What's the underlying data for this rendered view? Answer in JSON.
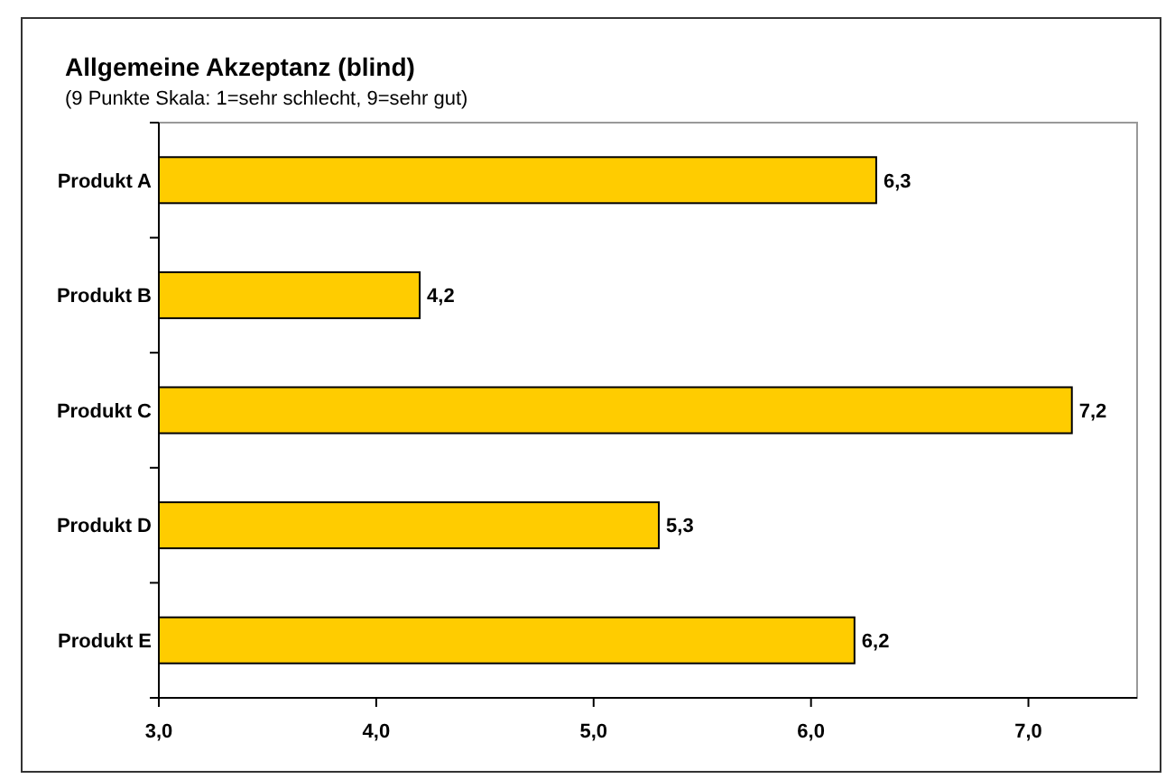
{
  "chart_data": {
    "type": "bar",
    "orientation": "horizontal",
    "title": "Allgemeine Akzeptanz (blind)",
    "subtitle": "(9 Punkte Skala: 1=sehr schlecht, 9=sehr gut)",
    "categories": [
      "Produkt A",
      "Produkt B",
      "Produkt C",
      "Produkt D",
      "Produkt E"
    ],
    "values": [
      6.3,
      4.2,
      7.2,
      5.3,
      6.2
    ],
    "value_labels": [
      "6,3",
      "4,2",
      "7,2",
      "5,3",
      "6,2"
    ],
    "color": "#ffcc00",
    "xlim": [
      3,
      7.5
    ],
    "xticks": [
      {
        "value": 3,
        "label": "3,0"
      },
      {
        "value": 4,
        "label": "4,0"
      },
      {
        "value": 5,
        "label": "5,0"
      },
      {
        "value": 6,
        "label": "6,0"
      },
      {
        "value": 7,
        "label": "7,0"
      }
    ],
    "grid": false
  }
}
